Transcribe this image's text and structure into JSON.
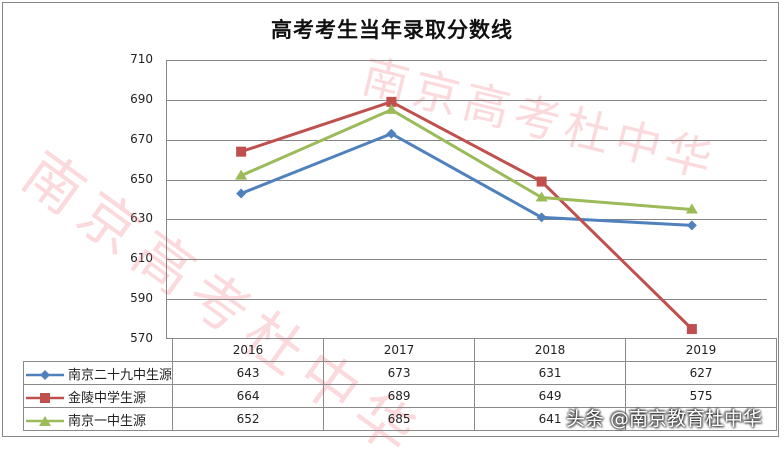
{
  "chart_data": {
    "type": "line",
    "title": "高考考生当年录取分数线",
    "xlabel": "",
    "ylabel": "",
    "categories": [
      "2016",
      "2017",
      "2018",
      "2019"
    ],
    "ylim": [
      570,
      710
    ],
    "yticks": [
      710,
      690,
      670,
      650,
      630,
      610,
      590,
      570
    ],
    "grid": true,
    "legend_position": "data-table",
    "series": [
      {
        "name": "南京二十九中生源",
        "color": "#4F81BD",
        "marker": "diamond",
        "values": [
          643,
          673,
          631,
          627
        ]
      },
      {
        "name": "金陵中学生源",
        "color": "#C0504D",
        "marker": "square",
        "values": [
          664,
          689,
          649,
          575
        ]
      },
      {
        "name": "南京一中生源",
        "color": "#9BBB59",
        "marker": "triangle",
        "values": [
          652,
          685,
          641,
          635
        ]
      }
    ],
    "table_values": [
      [
        "643",
        "673",
        "631",
        "627"
      ],
      [
        "664",
        "689",
        "649",
        "575"
      ],
      [
        "652",
        "685",
        "641",
        ""
      ]
    ]
  },
  "watermark": "南京高考杜中华",
  "badge": "头条 @南京教育杜中华",
  "ytick_labels": [
    "710",
    "690",
    "670",
    "650",
    "630",
    "610",
    "590",
    "570"
  ]
}
